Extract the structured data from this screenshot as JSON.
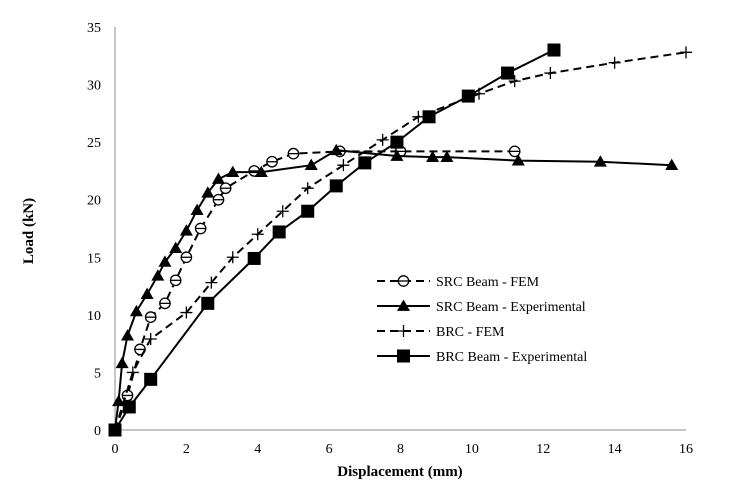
{
  "chart_data": {
    "type": "line",
    "title": "",
    "xlabel": "Displacement (mm)",
    "ylabel": "Load (kN)",
    "xlim": [
      0,
      16
    ],
    "ylim": [
      0,
      35
    ],
    "xticks": [
      "0",
      "2",
      "4",
      "6",
      "8",
      "10",
      "12",
      "14",
      "16"
    ],
    "yticks": [
      "0",
      "5",
      "10",
      "15",
      "20",
      "25",
      "30",
      "35"
    ],
    "grid": false,
    "legend_position": "center-right",
    "series": [
      {
        "name": "SRC Beam - FEM",
        "line_style": "dashed",
        "marker": "circle-bar",
        "x": [
          0,
          0.35,
          0.7,
          1.0,
          1.4,
          1.7,
          2.0,
          2.4,
          2.9,
          3.1,
          3.9,
          4.4,
          5.0,
          6.3,
          8.0,
          11.2
        ],
        "y": [
          0,
          3.0,
          7.0,
          9.8,
          11.0,
          13.0,
          15.0,
          17.5,
          20.0,
          21.0,
          22.5,
          23.3,
          24.0,
          24.2,
          24.2,
          24.2
        ]
      },
      {
        "name": "SRC Beam - Experimental",
        "line_style": "solid",
        "marker": "triangle",
        "x": [
          0,
          0.1,
          0.2,
          0.35,
          0.6,
          0.9,
          1.2,
          1.4,
          1.7,
          2.0,
          2.3,
          2.6,
          2.9,
          3.3,
          4.1,
          5.5,
          6.2,
          7.9,
          8.9,
          9.3,
          11.3,
          13.6,
          15.6
        ],
        "y": [
          0,
          2.5,
          5.8,
          8.2,
          10.3,
          11.8,
          13.4,
          14.6,
          15.8,
          17.3,
          19.1,
          20.6,
          21.8,
          22.4,
          22.4,
          23.0,
          24.3,
          23.8,
          23.7,
          23.7,
          23.4,
          23.3,
          23.0
        ]
      },
      {
        "name": "BRC - FEM",
        "line_style": "dashed",
        "marker": "plus",
        "x": [
          0,
          0.5,
          1.0,
          2.0,
          2.7,
          3.3,
          4.0,
          4.7,
          5.4,
          6.4,
          7.5,
          8.5,
          10.2,
          11.2,
          12.2,
          14.0,
          16.0
        ],
        "y": [
          0,
          5.0,
          7.9,
          10.2,
          12.8,
          15.0,
          17.0,
          19.0,
          21.0,
          23.0,
          25.2,
          27.2,
          29.2,
          30.3,
          31.0,
          31.9,
          32.8
        ]
      },
      {
        "name": "BRC Beam - Experimental",
        "line_style": "solid",
        "marker": "square",
        "x": [
          0,
          0.4,
          1.0,
          2.6,
          3.9,
          4.6,
          5.4,
          6.2,
          7.0,
          7.9,
          8.8,
          9.9,
          11.0,
          12.3
        ],
        "y": [
          0,
          2.0,
          4.4,
          11.0,
          14.9,
          17.2,
          19.0,
          21.2,
          23.2,
          25.0,
          27.2,
          29.0,
          31.0,
          33.0
        ]
      }
    ]
  }
}
